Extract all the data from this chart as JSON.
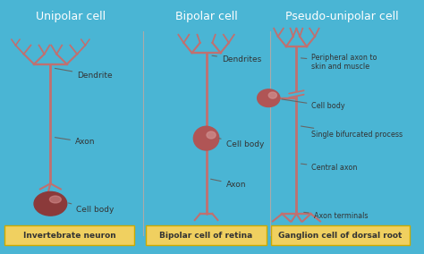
{
  "bg_color": "#4ab5d4",
  "panel_color": "#e8f4f8",
  "neuron_color": "#c07070",
  "neuron_dark": "#8b3a3a",
  "label_color": "#333333",
  "badge_color": "#f0d060",
  "badge_text_color": "#333333",
  "header_bg": "#4ab5d4",
  "titles": [
    "Unipolar cell",
    "Bipolar cell",
    "Pseudo-unipolar cell"
  ],
  "badges": [
    "Invertebrate neuron",
    "Bipolar cell of retina",
    "Ganglion cell of dorsal root"
  ]
}
